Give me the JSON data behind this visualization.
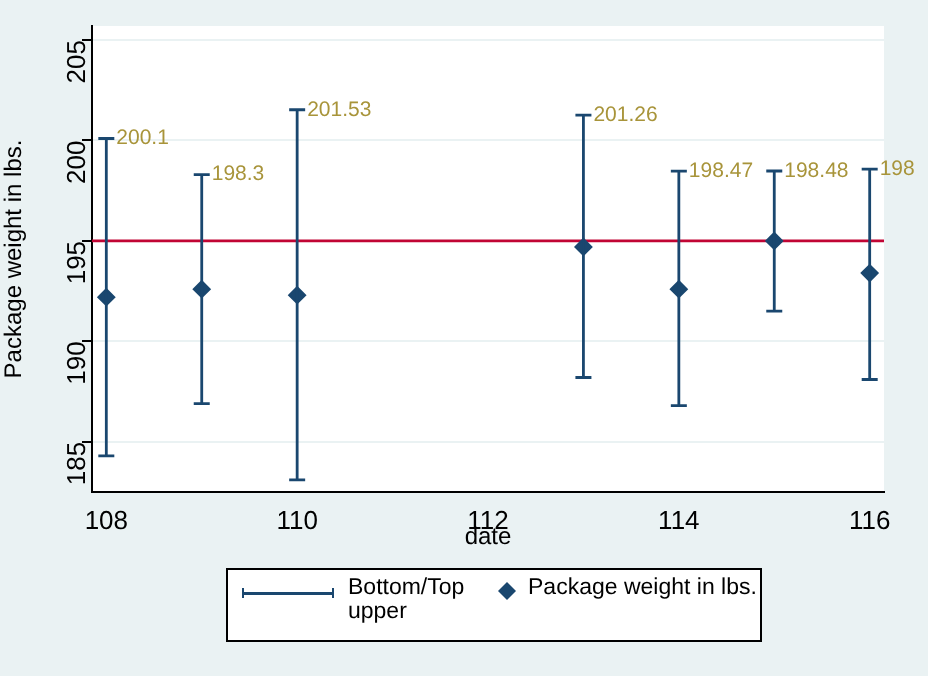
{
  "chart_data": {
    "type": "scatter",
    "xlabel": "date",
    "ylabel": "Package weight in lbs.",
    "x": [
      108,
      109,
      110,
      113,
      114,
      115,
      116
    ],
    "series": [
      {
        "name": "Package weight in lbs.",
        "color": "#1a476f",
        "marker": "diamond",
        "values": [
          192.2,
          192.6,
          192.3,
          194.7,
          192.6,
          195.0,
          193.4
        ],
        "errors": [
          [
            184.3,
            200.1
          ],
          [
            186.9,
            198.3
          ],
          [
            183.1,
            201.53
          ],
          [
            188.2,
            201.26
          ],
          [
            186.8,
            198.47
          ],
          [
            191.5,
            198.48
          ],
          [
            188.1,
            198.57
          ]
        ]
      }
    ],
    "annotations": [
      "Bottom/Top upper",
      {
        "text": "200.1",
        "x": 108,
        "y": 200.1
      },
      {
        "text": "198.3",
        "x": 109,
        "y": 198.3
      },
      {
        "text": "201.53",
        "x": 110,
        "y": 201.53
      },
      {
        "text": "201.26",
        "x": 113,
        "y": 201.26
      },
      {
        "text": "198.47",
        "x": 114,
        "y": 198.47
      },
      {
        "text": "198.48",
        "x": 115,
        "y": 198.48
      },
      {
        "text": "198",
        "x": 116,
        "y": 198.57
      }
    ],
    "ref_lines": [
      {
        "axis": "y",
        "value": 195,
        "color": "#c10534"
      }
    ],
    "xlim": [
      107.85,
      116.15
    ],
    "xticks": [
      108,
      110,
      112,
      114,
      116
    ],
    "ylim": [
      182.5,
      205.7
    ],
    "yticks": [
      185,
      190,
      195,
      200,
      205
    ],
    "grid": "y",
    "legend": "bottom"
  }
}
